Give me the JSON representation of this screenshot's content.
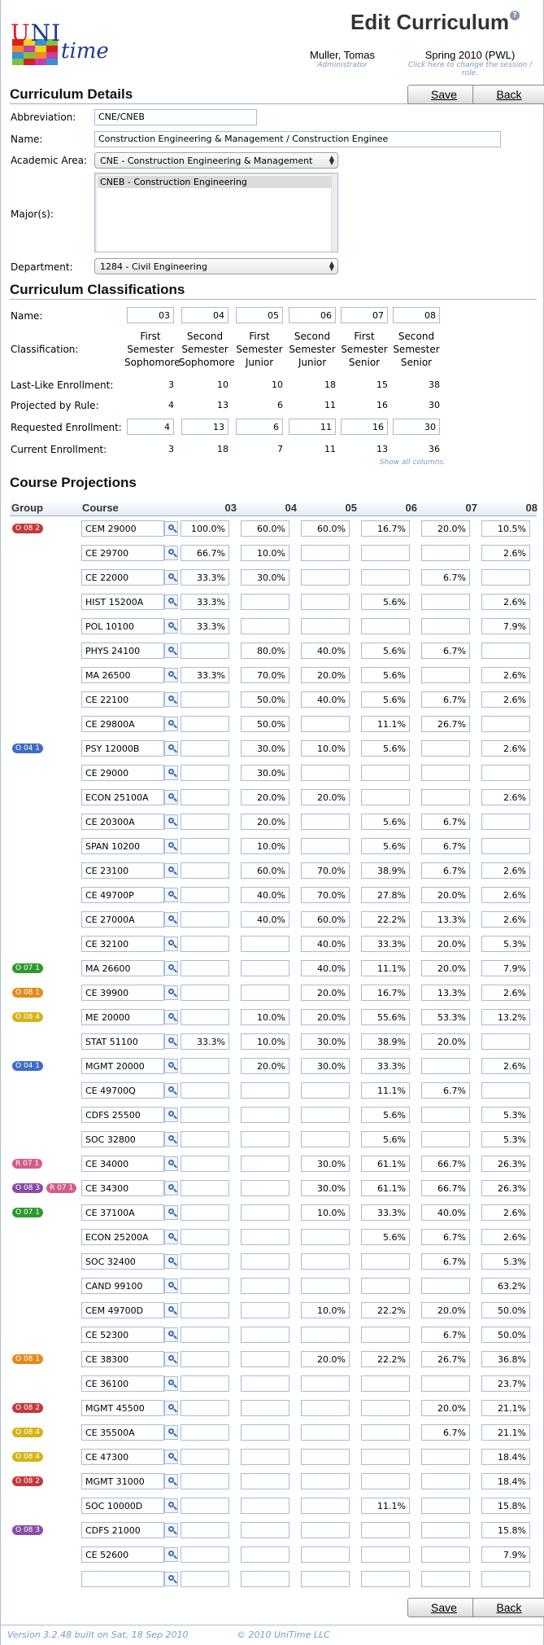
{
  "header": {
    "logo_uni": "UNI",
    "logo_time": "time",
    "title": "Edit Curriculum",
    "user_name": "Muller, Tomas",
    "user_role": "Administrator",
    "session": "Spring 2010 (PWL)",
    "session_hint": "Click here to change the session / role."
  },
  "buttons": {
    "save": "Save",
    "back": "Back"
  },
  "details": {
    "section_title": "Curriculum Details",
    "abbreviation_label": "Abbreviation:",
    "abbreviation_value": "CNE/CNEB",
    "name_label": "Name:",
    "name_value": "Construction Engineering & Management / Construction Enginee",
    "academic_area_label": "Academic Area:",
    "academic_area_value": "CNE - Construction Engineering & Management",
    "majors_label": "Major(s):",
    "majors_selected": "CNEB - Construction Engineering",
    "department_label": "Department:",
    "department_value": "1284 - Civil Engineering"
  },
  "classifications": {
    "section_title": "Curriculum Classifications",
    "row_labels": {
      "name": "Name:",
      "classification": "Classification:",
      "last_like": "Last-Like Enrollment:",
      "projected": "Projected by Rule:",
      "requested": "Requested Enrollment:",
      "current": "Current Enrollment:"
    },
    "columns": [
      {
        "name": "03",
        "line1": "First",
        "line2": "Semester",
        "line3": "Sophomore",
        "last_like": "3",
        "projected": "4",
        "requested": "4",
        "current": "3"
      },
      {
        "name": "04",
        "line1": "Second",
        "line2": "Semester",
        "line3": "Sophomore",
        "last_like": "10",
        "projected": "13",
        "requested": "13",
        "current": "18"
      },
      {
        "name": "05",
        "line1": "First",
        "line2": "Semester",
        "line3": "Junior",
        "last_like": "10",
        "projected": "6",
        "requested": "6",
        "current": "7"
      },
      {
        "name": "06",
        "line1": "Second",
        "line2": "Semester",
        "line3": "Junior",
        "last_like": "18",
        "projected": "11",
        "requested": "11",
        "current": "11"
      },
      {
        "name": "07",
        "line1": "First",
        "line2": "Semester",
        "line3": "Senior",
        "last_like": "15",
        "projected": "16",
        "requested": "16",
        "current": "13"
      },
      {
        "name": "08",
        "line1": "Second",
        "line2": "Semester",
        "line3": "Senior",
        "last_like": "38",
        "projected": "30",
        "requested": "30",
        "current": "36"
      }
    ],
    "show_all": "Show all columns."
  },
  "projections": {
    "section_title": "Course Projections",
    "col_group": "Group",
    "col_course": "Course",
    "columns": [
      "03",
      "04",
      "05",
      "06",
      "07",
      "08"
    ],
    "badge_colors": {
      "red": "#c4393b",
      "blue": "#3f6cc9",
      "green": "#2d9a2d",
      "orange": "#e38b1d",
      "yellow": "#d6b318",
      "pink": "#d45c8a",
      "purple": "#8a4ca8"
    },
    "rows": [
      {
        "groups": [
          {
            "label": "O 08 2",
            "color": "red"
          }
        ],
        "course": "CEM 29000",
        "values": [
          "100.0%",
          "60.0%",
          "60.0%",
          "16.7%",
          "20.0%",
          "10.5%"
        ]
      },
      {
        "groups": [],
        "course": "CE 29700",
        "values": [
          "66.7%",
          "10.0%",
          "",
          "",
          "",
          "2.6%"
        ]
      },
      {
        "groups": [],
        "course": "CE 22000",
        "values": [
          "33.3%",
          "30.0%",
          "",
          "",
          "6.7%",
          ""
        ]
      },
      {
        "groups": [],
        "course": "HIST 15200A",
        "values": [
          "33.3%",
          "",
          "",
          "5.6%",
          "",
          "2.6%"
        ]
      },
      {
        "groups": [],
        "course": "POL 10100",
        "values": [
          "33.3%",
          "",
          "",
          "",
          "",
          "7.9%"
        ]
      },
      {
        "groups": [],
        "course": "PHYS 24100",
        "values": [
          "",
          "80.0%",
          "40.0%",
          "5.6%",
          "6.7%",
          ""
        ]
      },
      {
        "groups": [],
        "course": "MA 26500",
        "values": [
          "33.3%",
          "70.0%",
          "20.0%",
          "5.6%",
          "",
          "2.6%"
        ]
      },
      {
        "groups": [],
        "course": "CE 22100",
        "values": [
          "",
          "50.0%",
          "40.0%",
          "5.6%",
          "6.7%",
          "2.6%"
        ]
      },
      {
        "groups": [],
        "course": "CE 29800A",
        "values": [
          "",
          "50.0%",
          "",
          "11.1%",
          "26.7%",
          ""
        ]
      },
      {
        "groups": [
          {
            "label": "O 04 1",
            "color": "blue"
          }
        ],
        "course": "PSY 12000B",
        "values": [
          "",
          "30.0%",
          "10.0%",
          "5.6%",
          "",
          "2.6%"
        ]
      },
      {
        "groups": [],
        "course": "CE 29000",
        "values": [
          "",
          "30.0%",
          "",
          "",
          "",
          ""
        ]
      },
      {
        "groups": [],
        "course": "ECON 25100A",
        "values": [
          "",
          "20.0%",
          "20.0%",
          "",
          "",
          "2.6%"
        ]
      },
      {
        "groups": [],
        "course": "CE 20300A",
        "values": [
          "",
          "20.0%",
          "",
          "5.6%",
          "6.7%",
          ""
        ]
      },
      {
        "groups": [],
        "course": "SPAN 10200",
        "values": [
          "",
          "10.0%",
          "",
          "5.6%",
          "6.7%",
          ""
        ]
      },
      {
        "groups": [],
        "course": "CE 23100",
        "values": [
          "",
          "60.0%",
          "70.0%",
          "38.9%",
          "6.7%",
          "2.6%"
        ]
      },
      {
        "groups": [],
        "course": "CE 49700P",
        "values": [
          "",
          "40.0%",
          "70.0%",
          "27.8%",
          "20.0%",
          "2.6%"
        ]
      },
      {
        "groups": [],
        "course": "CE 27000A",
        "values": [
          "",
          "40.0%",
          "60.0%",
          "22.2%",
          "13.3%",
          "2.6%"
        ]
      },
      {
        "groups": [],
        "course": "CE 32100",
        "values": [
          "",
          "",
          "40.0%",
          "33.3%",
          "20.0%",
          "5.3%"
        ]
      },
      {
        "groups": [
          {
            "label": "O 07 1",
            "color": "green"
          }
        ],
        "course": "MA 26600",
        "values": [
          "",
          "",
          "40.0%",
          "11.1%",
          "20.0%",
          "7.9%"
        ]
      },
      {
        "groups": [
          {
            "label": "O 08 1",
            "color": "orange"
          }
        ],
        "course": "CE 39900",
        "values": [
          "",
          "",
          "20.0%",
          "16.7%",
          "13.3%",
          "2.6%"
        ]
      },
      {
        "groups": [
          {
            "label": "O 08 4",
            "color": "yellow"
          }
        ],
        "course": "ME 20000",
        "values": [
          "",
          "10.0%",
          "20.0%",
          "55.6%",
          "53.3%",
          "13.2%"
        ]
      },
      {
        "groups": [],
        "course": "STAT 51100",
        "values": [
          "33.3%",
          "10.0%",
          "30.0%",
          "38.9%",
          "20.0%",
          ""
        ]
      },
      {
        "groups": [
          {
            "label": "O 04 1",
            "color": "blue"
          }
        ],
        "course": "MGMT 20000",
        "values": [
          "",
          "20.0%",
          "30.0%",
          "33.3%",
          "",
          "2.6%"
        ]
      },
      {
        "groups": [],
        "course": "CE 49700Q",
        "values": [
          "",
          "",
          "",
          "11.1%",
          "6.7%",
          ""
        ]
      },
      {
        "groups": [],
        "course": "CDFS 25500",
        "values": [
          "",
          "",
          "",
          "5.6%",
          "",
          "5.3%"
        ]
      },
      {
        "groups": [],
        "course": "SOC 32800",
        "values": [
          "",
          "",
          "",
          "5.6%",
          "",
          "5.3%"
        ]
      },
      {
        "groups": [
          {
            "label": "R 07 1",
            "color": "pink"
          }
        ],
        "course": "CE 34000",
        "values": [
          "",
          "",
          "30.0%",
          "61.1%",
          "66.7%",
          "26.3%"
        ]
      },
      {
        "groups": [
          {
            "label": "O 08 3",
            "color": "purple"
          },
          {
            "label": "R 07 1",
            "color": "pink"
          }
        ],
        "course": "CE 34300",
        "values": [
          "",
          "",
          "30.0%",
          "61.1%",
          "66.7%",
          "26.3%"
        ]
      },
      {
        "groups": [
          {
            "label": "O 07 1",
            "color": "green"
          }
        ],
        "course": "CE 37100A",
        "values": [
          "",
          "",
          "10.0%",
          "33.3%",
          "40.0%",
          "2.6%"
        ]
      },
      {
        "groups": [],
        "course": "ECON 25200A",
        "values": [
          "",
          "",
          "",
          "5.6%",
          "6.7%",
          "2.6%"
        ]
      },
      {
        "groups": [],
        "course": "SOC 32400",
        "values": [
          "",
          "",
          "",
          "",
          "6.7%",
          "5.3%"
        ]
      },
      {
        "groups": [],
        "course": "CAND 99100",
        "values": [
          "",
          "",
          "",
          "",
          "",
          "63.2%"
        ]
      },
      {
        "groups": [],
        "course": "CEM 49700D",
        "values": [
          "",
          "",
          "10.0%",
          "22.2%",
          "20.0%",
          "50.0%"
        ]
      },
      {
        "groups": [],
        "course": "CE 52300",
        "values": [
          "",
          "",
          "",
          "",
          "6.7%",
          "50.0%"
        ]
      },
      {
        "groups": [
          {
            "label": "O 08 1",
            "color": "orange"
          }
        ],
        "course": "CE 38300",
        "values": [
          "",
          "",
          "20.0%",
          "22.2%",
          "26.7%",
          "36.8%"
        ]
      },
      {
        "groups": [],
        "course": "CE 36100",
        "values": [
          "",
          "",
          "",
          "",
          "",
          "23.7%"
        ]
      },
      {
        "groups": [
          {
            "label": "O 08 2",
            "color": "red"
          }
        ],
        "course": "MGMT 45500",
        "values": [
          "",
          "",
          "",
          "",
          "20.0%",
          "21.1%"
        ]
      },
      {
        "groups": [
          {
            "label": "O 08 4",
            "color": "yellow"
          }
        ],
        "course": "CE 35500A",
        "values": [
          "",
          "",
          "",
          "",
          "6.7%",
          "21.1%"
        ]
      },
      {
        "groups": [
          {
            "label": "O 08 4",
            "color": "yellow"
          }
        ],
        "course": "CE 47300",
        "values": [
          "",
          "",
          "",
          "",
          "",
          "18.4%"
        ]
      },
      {
        "groups": [
          {
            "label": "O 08 2",
            "color": "red"
          }
        ],
        "course": "MGMT 31000",
        "values": [
          "",
          "",
          "",
          "",
          "",
          "18.4%"
        ]
      },
      {
        "groups": [],
        "course": "SOC 10000D",
        "values": [
          "",
          "",
          "",
          "11.1%",
          "",
          "15.8%"
        ]
      },
      {
        "groups": [
          {
            "label": "O 08 3",
            "color": "purple"
          }
        ],
        "course": "CDFS 21000",
        "values": [
          "",
          "",
          "",
          "",
          "",
          "15.8%"
        ]
      },
      {
        "groups": [],
        "course": "CE 52600",
        "values": [
          "",
          "",
          "",
          "",
          "",
          "7.9%"
        ]
      },
      {
        "groups": [],
        "course": "",
        "values": [
          "",
          "",
          "",
          "",
          "",
          ""
        ]
      }
    ]
  },
  "footer": {
    "version": "Version 3.2.48 built on Sat, 18 Sep 2010",
    "copyright": "© 2010 UniTime LLC"
  }
}
